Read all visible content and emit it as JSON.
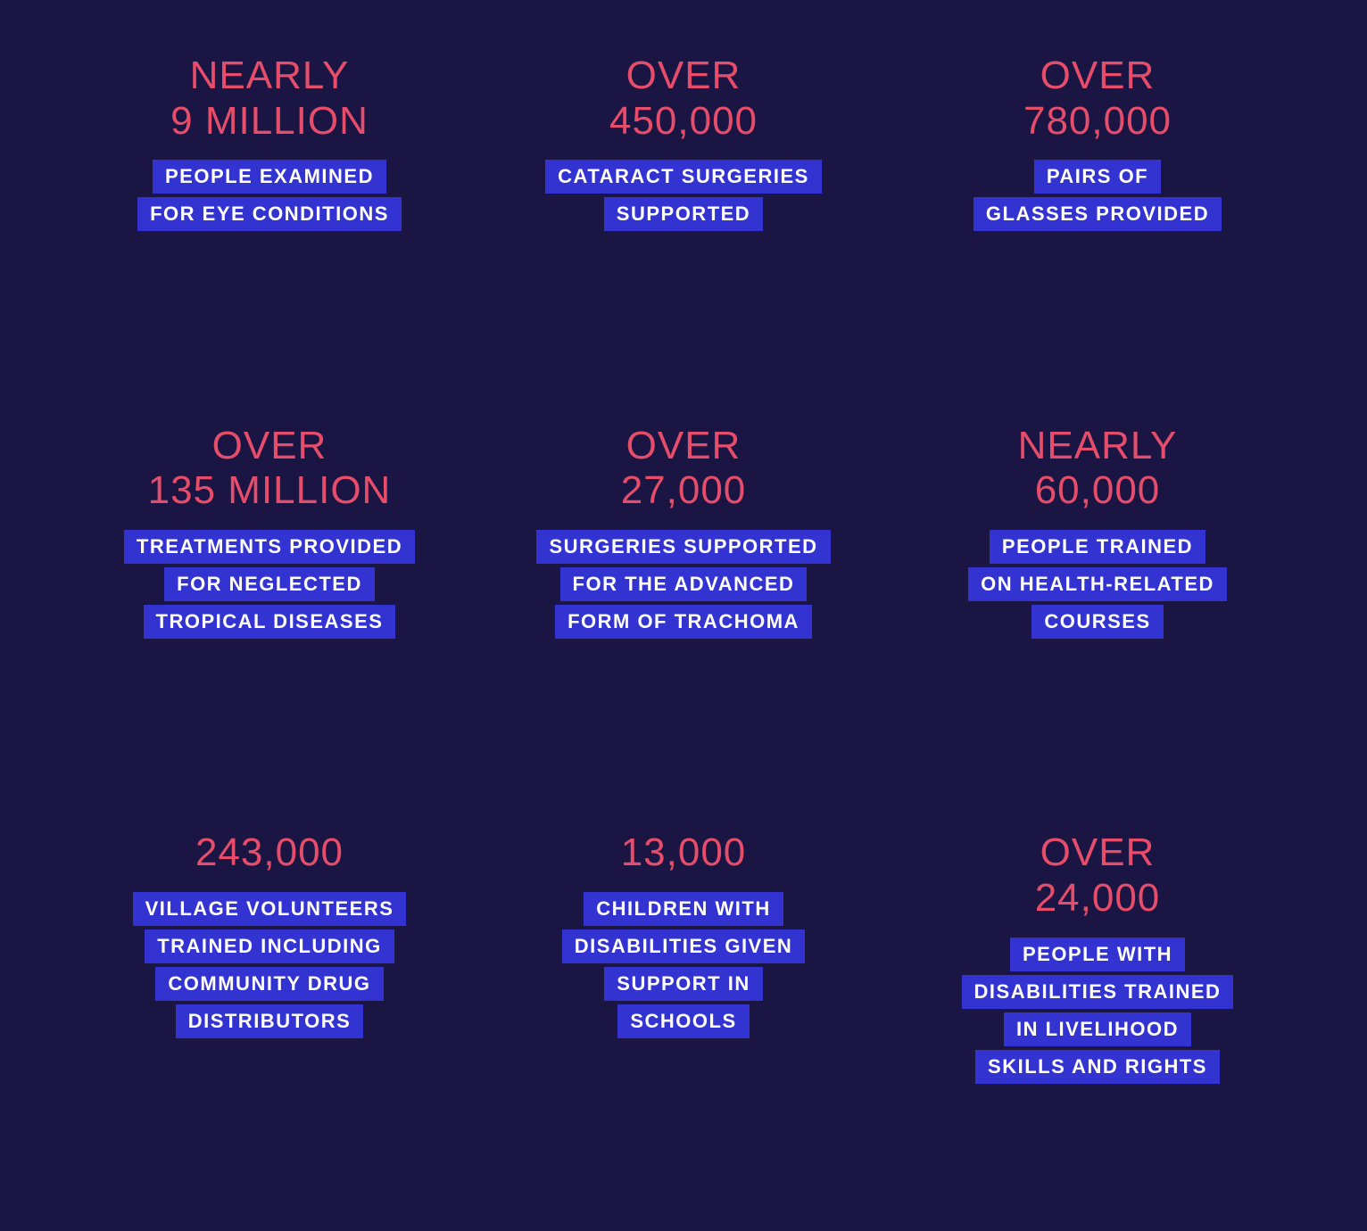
{
  "layout": {
    "type": "infographic",
    "grid": {
      "rows": 3,
      "cols": 3
    },
    "background_color": "#1a1543",
    "header_color": "#e54d6a",
    "desc_bg_color": "#3333d1",
    "desc_text_color": "#ffffff",
    "header_fontsize": 44,
    "desc_fontsize": 22
  },
  "stats": [
    {
      "prefix": "NEARLY",
      "value": "9 MILLION",
      "desc": [
        "PEOPLE EXAMINED",
        "FOR EYE CONDITIONS"
      ]
    },
    {
      "prefix": "OVER",
      "value": "450,000",
      "desc": [
        "CATARACT SURGERIES",
        "SUPPORTED"
      ]
    },
    {
      "prefix": "OVER",
      "value": "780,000",
      "desc": [
        "PAIRS OF",
        "GLASSES PROVIDED"
      ]
    },
    {
      "prefix": "OVER",
      "value": "135 MILLION",
      "desc": [
        "TREATMENTS PROVIDED",
        "FOR NEGLECTED",
        "TROPICAL DISEASES"
      ]
    },
    {
      "prefix": "OVER",
      "value": "27,000",
      "desc": [
        "SURGERIES SUPPORTED",
        "FOR THE ADVANCED",
        "FORM OF TRACHOMA"
      ]
    },
    {
      "prefix": "NEARLY",
      "value": "60,000",
      "desc": [
        "PEOPLE TRAINED",
        "ON HEALTH-RELATED",
        "COURSES"
      ]
    },
    {
      "prefix": "",
      "value": "243,000",
      "desc": [
        "VILLAGE VOLUNTEERS",
        "TRAINED INCLUDING",
        "COMMUNITY DRUG",
        "DISTRIBUTORS"
      ]
    },
    {
      "prefix": "",
      "value": "13,000",
      "desc": [
        "CHILDREN WITH",
        "DISABILITIES GIVEN",
        "SUPPORT IN",
        "SCHOOLS"
      ]
    },
    {
      "prefix": "OVER",
      "value": "24,000",
      "desc": [
        "PEOPLE WITH",
        "DISABILITIES TRAINED",
        "IN LIVELIHOOD",
        "SKILLS AND RIGHTS"
      ]
    }
  ]
}
